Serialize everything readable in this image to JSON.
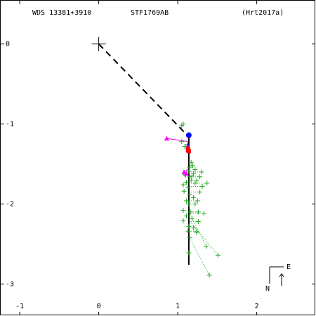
{
  "header": {
    "wds": "WDS 13381+3910",
    "name": "STF1769AB",
    "ref": "(Hrt2017a)"
  },
  "compass": {
    "north_label": "N",
    "east_label": "E"
  },
  "chart_data": {
    "type": "scatter",
    "title": "",
    "xlabel": "",
    "ylabel": "",
    "xlim": [
      -1.25,
      2.75
    ],
    "ylim": [
      -3.4,
      0.55
    ],
    "x_ticks": [
      {
        "value": -1,
        "label": "-1"
      },
      {
        "value": 0,
        "label": "0"
      },
      {
        "value": 1,
        "label": "1"
      },
      {
        "value": 2,
        "label": "2"
      }
    ],
    "y_ticks": [
      {
        "value": 0,
        "label": "0"
      },
      {
        "value": -1,
        "label": "-1"
      },
      {
        "value": -2,
        "label": "-2"
      },
      {
        "value": -3,
        "label": "-3"
      }
    ],
    "grid": false,
    "primary": {
      "x": 0,
      "y": 0
    },
    "colors": {
      "measures": "#22aa22",
      "residuals": "#22aa22",
      "special": "#ff00ff",
      "latest": "#0000ff",
      "predicted": "#ff0000",
      "path": "#000000",
      "dashed": "#000000"
    },
    "dashed_line": [
      [
        0,
        0
      ],
      [
        1.13,
        -1.15
      ]
    ],
    "path_line": [
      [
        1.14,
        -1.14
      ],
      [
        1.14,
        -2.76
      ]
    ],
    "measures": [
      [
        1.07,
        -1.0
      ],
      [
        1.05,
        -1.02
      ],
      [
        1.05,
        -1.22
      ],
      [
        1.09,
        -1.28
      ],
      [
        1.17,
        -1.48
      ],
      [
        1.19,
        -1.52
      ],
      [
        1.15,
        -1.54
      ],
      [
        1.22,
        -1.57
      ],
      [
        1.14,
        -1.59
      ],
      [
        1.3,
        -1.6
      ],
      [
        1.2,
        -1.62
      ],
      [
        1.09,
        -1.63
      ],
      [
        1.1,
        -1.64
      ],
      [
        1.18,
        -1.65
      ],
      [
        1.15,
        -1.66
      ],
      [
        1.28,
        -1.66
      ],
      [
        1.17,
        -1.7
      ],
      [
        1.11,
        -1.73
      ],
      [
        1.24,
        -1.71
      ],
      [
        1.22,
        -1.74
      ],
      [
        1.37,
        -1.74
      ],
      [
        1.07,
        -1.76
      ],
      [
        1.13,
        -1.79
      ],
      [
        1.31,
        -1.78
      ],
      [
        1.08,
        -1.84
      ],
      [
        1.15,
        -1.88
      ],
      [
        1.28,
        -1.85
      ],
      [
        1.2,
        -1.92
      ],
      [
        1.11,
        -1.96
      ],
      [
        1.25,
        -1.96
      ],
      [
        1.14,
        -2.0
      ],
      [
        1.22,
        -2.0
      ],
      [
        1.07,
        -2.08
      ],
      [
        1.16,
        -2.1
      ],
      [
        1.26,
        -2.1
      ],
      [
        1.33,
        -2.12
      ],
      [
        1.11,
        -2.15
      ],
      [
        1.18,
        -2.18
      ],
      [
        1.07,
        -2.21
      ],
      [
        1.26,
        -2.22
      ],
      [
        1.14,
        -2.28
      ],
      [
        1.2,
        -2.3
      ],
      [
        1.13,
        -2.34
      ],
      [
        1.24,
        -2.34
      ],
      [
        1.24,
        -2.36
      ],
      [
        1.15,
        -2.42
      ],
      [
        1.36,
        -2.53
      ],
      [
        1.14,
        -2.61
      ],
      [
        1.51,
        -2.64
      ],
      [
        1.4,
        -2.89
      ]
    ],
    "residual_lines": [
      [
        [
          1.14,
          -1.48
        ],
        [
          1.17,
          -1.48
        ]
      ],
      [
        [
          1.14,
          -1.52
        ],
        [
          1.19,
          -1.52
        ]
      ],
      [
        [
          1.14,
          -1.6
        ],
        [
          1.3,
          -1.6
        ]
      ],
      [
        [
          1.14,
          -1.66
        ],
        [
          1.28,
          -1.66
        ]
      ],
      [
        [
          1.14,
          -1.74
        ],
        [
          1.37,
          -1.74
        ]
      ],
      [
        [
          1.14,
          -1.78
        ],
        [
          1.31,
          -1.78
        ]
      ],
      [
        [
          1.14,
          -1.85
        ],
        [
          1.28,
          -1.85
        ]
      ],
      [
        [
          1.14,
          -1.96
        ],
        [
          1.25,
          -1.96
        ]
      ],
      [
        [
          1.14,
          -2.1
        ],
        [
          1.26,
          -2.1
        ]
      ],
      [
        [
          1.14,
          -2.12
        ],
        [
          1.33,
          -2.12
        ]
      ],
      [
        [
          1.14,
          -2.22
        ],
        [
          1.26,
          -2.22
        ]
      ],
      [
        [
          1.14,
          -2.34
        ],
        [
          1.24,
          -2.34
        ]
      ],
      [
        [
          1.14,
          -2.1
        ],
        [
          1.36,
          -2.53
        ]
      ],
      [
        [
          1.14,
          -2.2
        ],
        [
          1.51,
          -2.64
        ]
      ],
      [
        [
          1.14,
          -2.4
        ],
        [
          1.4,
          -2.89
        ]
      ],
      [
        [
          1.14,
          -1.7
        ],
        [
          1.07,
          -1.76
        ]
      ]
    ],
    "special_points": [
      [
        0.86,
        -1.18
      ],
      [
        1.08,
        -1.6
      ],
      [
        1.11,
        -1.62
      ],
      [
        1.13,
        -1.29
      ]
    ],
    "special_lines": [
      [
        [
          0.86,
          -1.18
        ],
        [
          1.13,
          -1.22
        ]
      ],
      [
        [
          1.08,
          -1.6
        ],
        [
          1.14,
          -1.56
        ]
      ]
    ],
    "latest_point": [
      1.14,
      -1.14
    ],
    "latest_cross": [
      1.12,
      -1.26
    ],
    "predicted_points": [
      [
        1.13,
        -1.31
      ],
      [
        1.13,
        -1.33
      ],
      [
        1.14,
        -1.34
      ]
    ]
  }
}
